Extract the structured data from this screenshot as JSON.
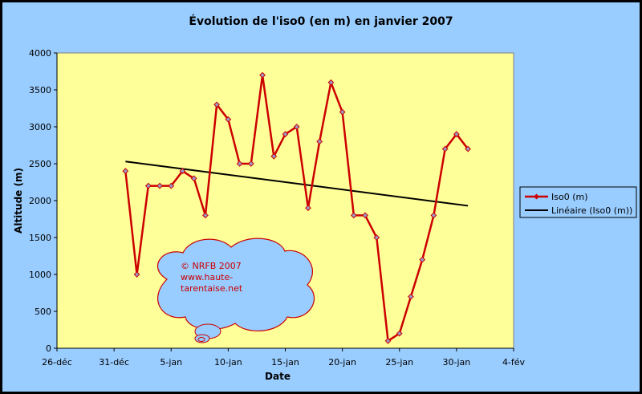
{
  "chart_data": {
    "type": "line",
    "title": "Évolution de l'iso0 (en m) en janvier 2007",
    "xlabel": "Date",
    "ylabel": "Altitude (m)",
    "ylim": [
      0,
      4000
    ],
    "yticks": [
      "0",
      "500",
      "1000",
      "1500",
      "2000",
      "2500",
      "3000",
      "3500",
      "4000"
    ],
    "xticks": [
      "26-déc",
      "31-déc",
      "5-jan",
      "10-jan",
      "15-jan",
      "20-jan",
      "25-jan",
      "30-jan",
      "4-fév"
    ],
    "xlim": [
      "2006-12-26",
      "2007-02-04"
    ],
    "grid": false,
    "legend_position": "right",
    "series": [
      {
        "name": "Iso0 (m)",
        "color": "#cc0000",
        "x": [
          "2007-01-01",
          "2007-01-02",
          "2007-01-03",
          "2007-01-04",
          "2007-01-05",
          "2007-01-06",
          "2007-01-07",
          "2007-01-08",
          "2007-01-09",
          "2007-01-10",
          "2007-01-11",
          "2007-01-12",
          "2007-01-13",
          "2007-01-14",
          "2007-01-15",
          "2007-01-16",
          "2007-01-17",
          "2007-01-18",
          "2007-01-19",
          "2007-01-20",
          "2007-01-21",
          "2007-01-22",
          "2007-01-23",
          "2007-01-24",
          "2007-01-25",
          "2007-01-26",
          "2007-01-27",
          "2007-01-28",
          "2007-01-29",
          "2007-01-30",
          "2007-01-31"
        ],
        "y": [
          2400,
          1000,
          2200,
          2200,
          2200,
          2400,
          2300,
          1800,
          3300,
          3100,
          2500,
          2500,
          3700,
          2600,
          2900,
          3000,
          1900,
          2800,
          3600,
          3200,
          1800,
          1800,
          1500,
          100,
          200,
          700,
          1200,
          1800,
          2700,
          2900,
          2700
        ]
      },
      {
        "name": "Linéaire (Iso0 (m))",
        "color": "#000000",
        "x": [
          "2007-01-01",
          "2007-01-31"
        ],
        "y": [
          2530,
          1930
        ]
      }
    ]
  },
  "annotation": {
    "lines": [
      "© NRFB 2007",
      "www.haute-",
      "tarentaise.net"
    ]
  }
}
